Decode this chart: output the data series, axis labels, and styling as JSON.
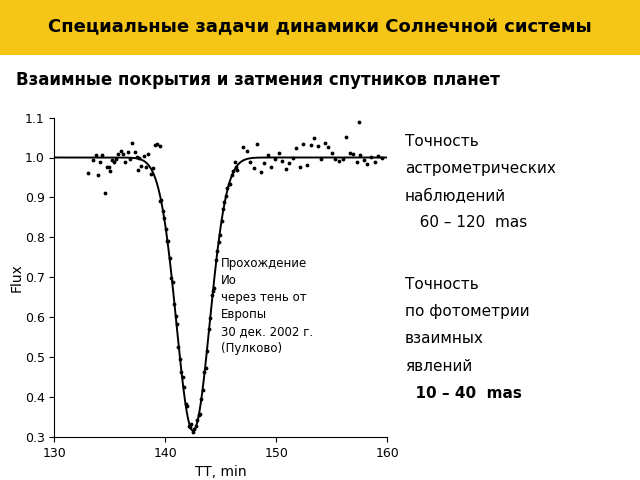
{
  "title": "Специальные задачи динамики Солнечной системы",
  "subtitle": "Взаимные покрытия и затмения спутников планет",
  "title_bg": "#F5C518",
  "xlabel": "TT, min",
  "ylabel": "Flux",
  "xlim": [
    130,
    160
  ],
  "ylim": [
    0.3,
    1.1
  ],
  "xticks": [
    130,
    140,
    150,
    160
  ],
  "yticks": [
    0.3,
    0.4,
    0.5,
    0.6,
    0.7,
    0.8,
    0.9,
    1.0,
    1.1
  ],
  "annotation": "Прохождение\nИо\nчерез тень от\nЕвропы\n30 дек. 2002 г.\n(Пулково)",
  "text_right_top_line1": "Точность",
  "text_right_top_line2": "астрометрических",
  "text_right_top_line3": "наблюдений",
  "text_right_top_line4": "   60 – 120  mas",
  "text_right_bot_line1": "Точность",
  "text_right_bot_line2": "по фотометрии",
  "text_right_bot_line3": "взаимных",
  "text_right_bot_line4": "явлений",
  "text_right_bot_line5": "  10 – 40  mas",
  "curve_color": "black",
  "dot_color": "black",
  "background_color": "white"
}
